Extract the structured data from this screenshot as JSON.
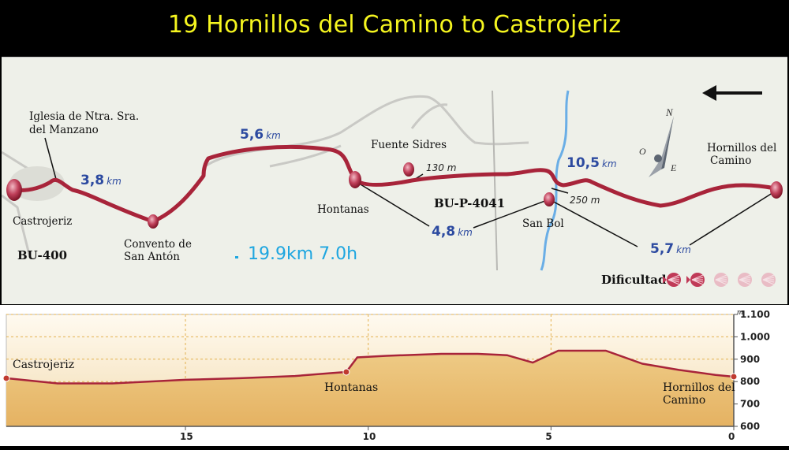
{
  "title": "19 Hornillos del Camino to Castrojeriz",
  "map": {
    "places": {
      "castrojeriz": "Castrojeriz",
      "iglesia_line1": "Iglesia de Ntra. Sra.",
      "iglesia_line2": "del Manzano",
      "convento_line1": "Convento de",
      "convento_line2": "San Antón",
      "hontanas": "Hontanas",
      "fuente_sidres": "Fuente Sidres",
      "san_bol": "San Bol",
      "hornillos_line1": "Hornillos del",
      "hornillos_line2": "Camino"
    },
    "roads": {
      "bu400": "BU-400",
      "bup4041": "BU-P-4041"
    },
    "distances": [
      {
        "value": "3,8",
        "unit": "km"
      },
      {
        "value": "5,6",
        "unit": "km"
      },
      {
        "value": "4,8",
        "unit": "km"
      },
      {
        "value": "10,5",
        "unit": "km"
      },
      {
        "value": "5,7",
        "unit": "km"
      }
    ],
    "altitudes": {
      "fuente_sidres": "130 m",
      "san_bol": "250 m"
    },
    "stats": "19.9km 7.0h",
    "difficulty_label": "Dificultad",
    "difficulty": {
      "level": 2,
      "max": 5
    },
    "compass": {
      "north": "N",
      "east": "E",
      "west": "O"
    },
    "colors": {
      "route": "#a8243a",
      "river": "#6aaee6",
      "distance": "#2c4aa0",
      "stats": "#1ea6e0",
      "title": "#f5f51f"
    }
  },
  "profile": {
    "places": {
      "castrojeriz": "Castrojeriz",
      "hontanas": "Hontanas",
      "hornillos_line1": "Hornillos del",
      "hornillos_line2": "Camino"
    },
    "y_unit": "m",
    "y_ticks": [
      "1.100",
      "1.000",
      "900",
      "800",
      "700",
      "600"
    ],
    "x_ticks": [
      "15",
      "10",
      "5",
      "0"
    ]
  },
  "chart_data": {
    "type": "area",
    "x": [
      19.9,
      18.5,
      17,
      15,
      13.5,
      12,
      11,
      10.6,
      10.3,
      9.5,
      8,
      7,
      6.2,
      5.5,
      4.8,
      3.5,
      2.5,
      1.5,
      0.5,
      0
    ],
    "values": [
      815,
      792,
      792,
      808,
      815,
      825,
      838,
      843,
      908,
      915,
      924,
      924,
      918,
      885,
      938,
      938,
      880,
      852,
      830,
      822
    ],
    "xlim": [
      19.9,
      0
    ],
    "ylim": [
      600,
      1100
    ],
    "xticks": [
      15,
      10,
      5,
      0
    ],
    "yticks": [
      600,
      700,
      800,
      900,
      1000,
      1100
    ],
    "grid": true
  }
}
